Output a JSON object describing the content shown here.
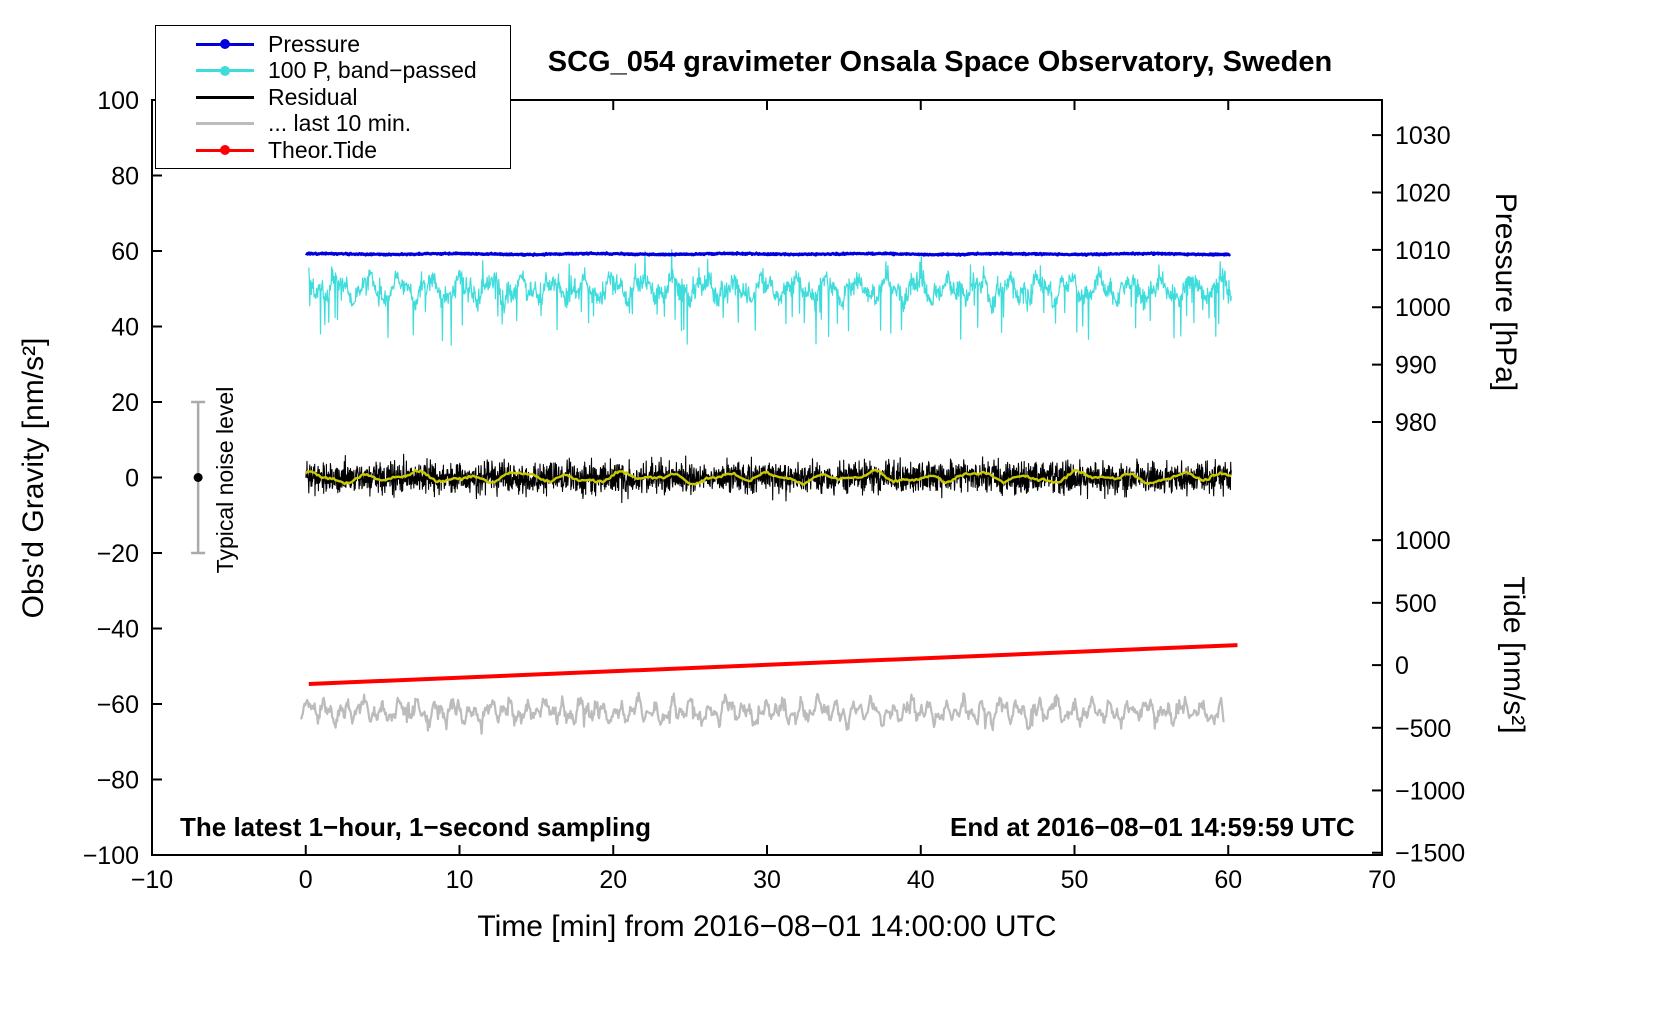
{
  "chart_data": {
    "type": "line",
    "title": "SCG_054 gravimeter Onsala Space Observatory, Sweden",
    "xlabel": "Time [min] from 2016−08−01 14:00:00 UTC",
    "x_range": [
      -10,
      70
    ],
    "x_ticks": [
      -10,
      0,
      10,
      20,
      30,
      40,
      50,
      60,
      70
    ],
    "grid": false,
    "legend_position": "top-left",
    "y_left": {
      "label": "Obs'd Gravity [nm/s²]",
      "range": [
        -100,
        100
      ],
      "ticks": [
        100,
        80,
        60,
        40,
        20,
        0,
        -20,
        -40,
        -60,
        -80,
        -100
      ]
    },
    "y_right_pressure": {
      "label": "Pressure [hPa]",
      "ticks": [
        1030,
        1020,
        1010,
        1000,
        990,
        980
      ],
      "g_positions": [
        90.7,
        75.5,
        60.3,
        45.1,
        29.9,
        14.7
      ]
    },
    "y_right_tide": {
      "label": "Tide [nm/s²]",
      "ticks": [
        1000,
        500,
        0,
        -500,
        -1000,
        -1500
      ],
      "g_positions": [
        -16.6,
        -33.2,
        -49.7,
        -66.3,
        -82.9,
        -99.4
      ]
    },
    "legend": [
      {
        "label": "Pressure",
        "color": "#0000dd",
        "marker": "line-dot"
      },
      {
        "label": "100 P, band−passed",
        "color": "#3fdcdc",
        "marker": "line-dot"
      },
      {
        "label": "Residual",
        "color": "#000000",
        "marker": "line"
      },
      {
        "label": "... last 10 min.",
        "color": "#bcbcbc",
        "marker": "line"
      },
      {
        "label": "Theor.Tide",
        "color": "#ff0000",
        "marker": "line-dot"
      }
    ],
    "series": [
      {
        "id": "pressure",
        "label": "Pressure",
        "color": "#0000dd",
        "width": 3,
        "gen": "flat",
        "x_span": [
          0,
          60.1
        ],
        "points": 1500,
        "baseline_g": 59.2,
        "noise_g": 0.3,
        "value_hPa_approx": 1009
      },
      {
        "id": "band_passed",
        "label": "100 P, band−passed",
        "color": "#3fdcdc",
        "width": 1.2,
        "gen": "band",
        "x_span": [
          0.2,
          60.2
        ],
        "points": 1900,
        "baseline_g": 50,
        "noise_g": 2.4,
        "dip_min_g": 35,
        "max_g": 60.5
      },
      {
        "id": "residual",
        "label": "Residual",
        "color": "#000000",
        "width": 1.1,
        "gen": "noise",
        "x_span": [
          0,
          60.2
        ],
        "points": 3000,
        "baseline_g": 0,
        "noise_g": 3.5
      },
      {
        "id": "residual_smooth",
        "label": "Residual smoothed",
        "color": "#c9c900",
        "width": 2.4,
        "gen": "smooth",
        "x_span": [
          0,
          60.2
        ],
        "points": 500,
        "baseline_g": 0,
        "amp_g": 1.7
      },
      {
        "id": "last_10_min",
        "label": "... last 10 min.",
        "color": "#bcbcbc",
        "width": 2.2,
        "gen": "wiggle",
        "x_span": [
          -0.3,
          59.7
        ],
        "points": 1100,
        "baseline_g": -62,
        "amp_g": 3.6
      },
      {
        "id": "theor_tide",
        "label": "Theor.Tide",
        "color": "#ff0000",
        "width": 4,
        "gen": "trend",
        "x_span": [
          0.2,
          60.6
        ],
        "g_start": -54.7,
        "g_end": -44.4,
        "tide_start_nms2": -150,
        "tide_end_nms2": 160
      }
    ],
    "noise_bar": {
      "x": -7,
      "center_g": 0,
      "half_range_g": 20,
      "color": "#aaaaaa"
    },
    "annotations": {
      "sampling_note": "The latest 1−hour, 1−second sampling",
      "end_time": "End at 2016−08−01 14:59:59 UTC",
      "noise_label": "Typical noise level"
    }
  }
}
